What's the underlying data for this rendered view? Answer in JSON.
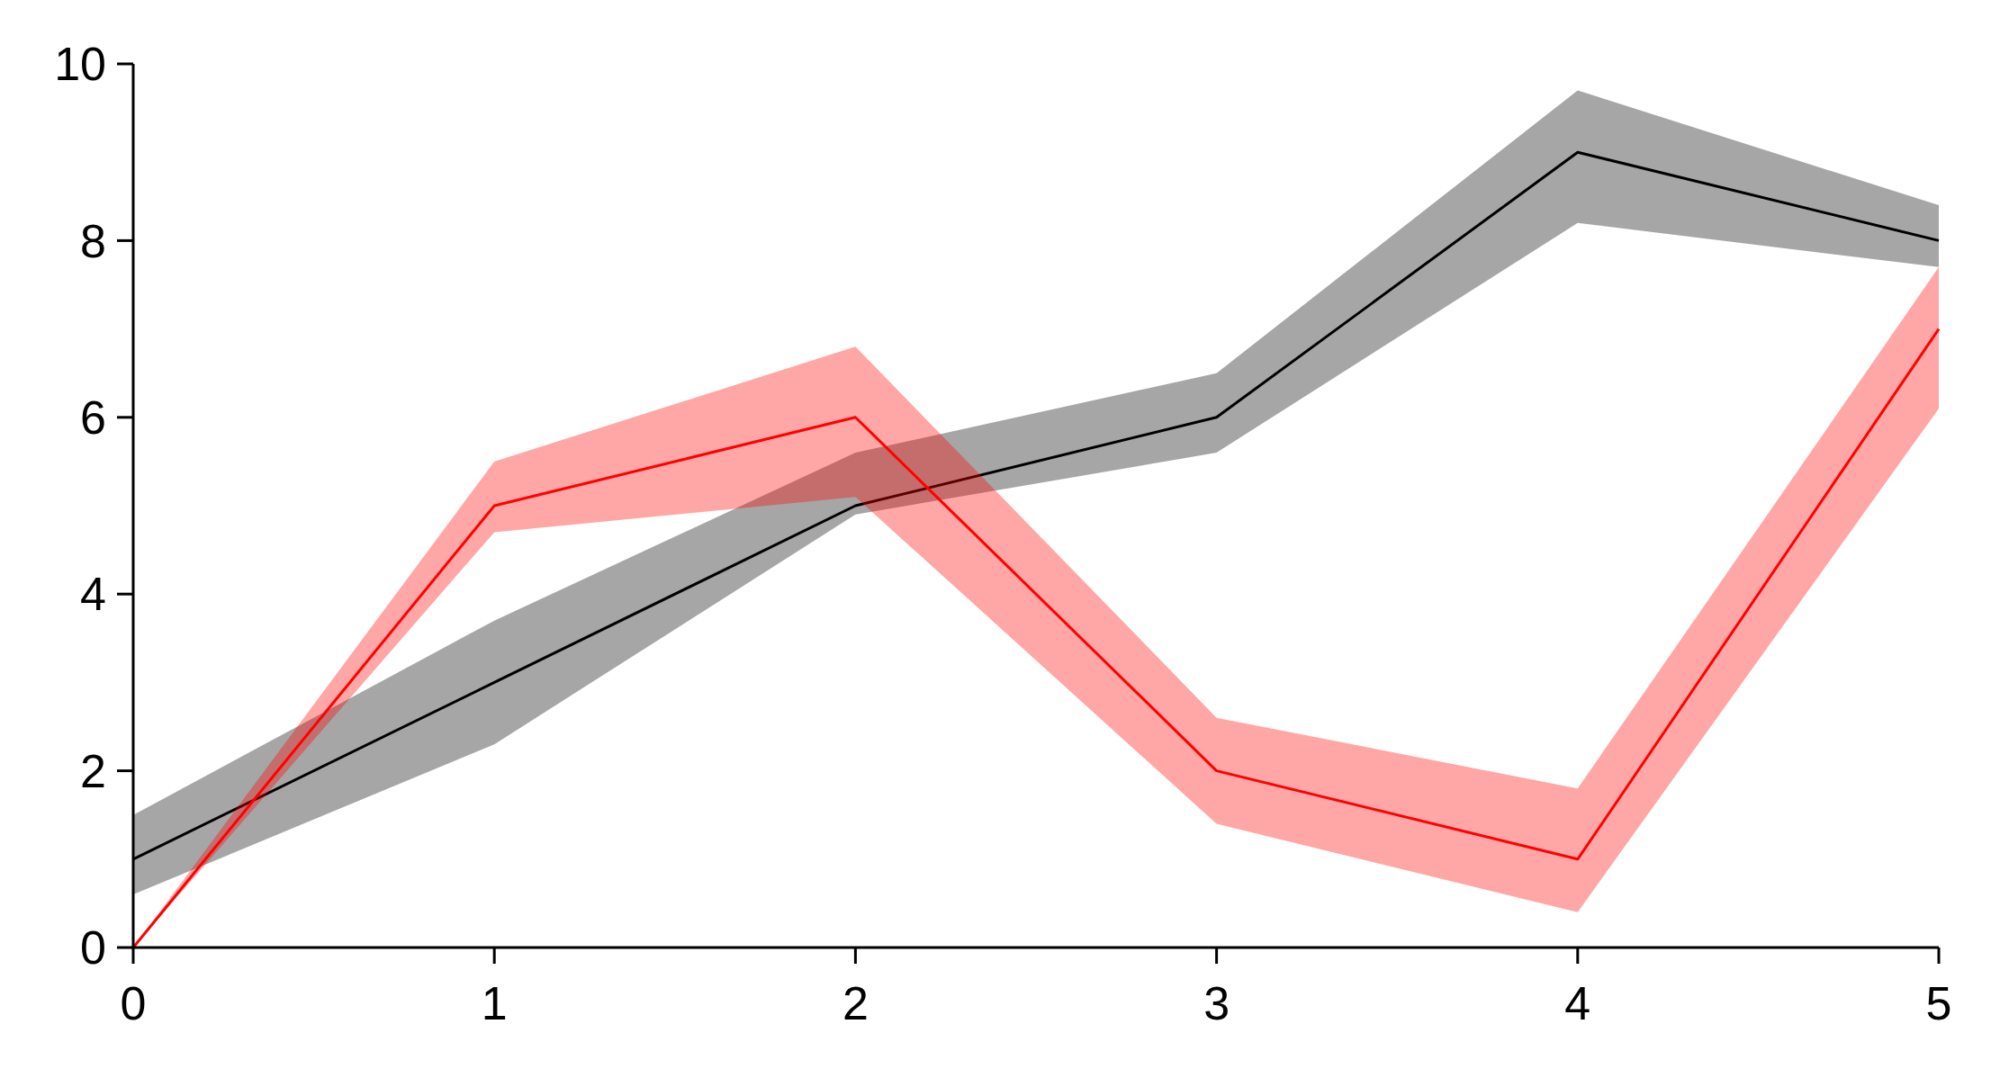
{
  "chart_data": {
    "type": "line",
    "x": [
      0,
      1,
      2,
      3,
      4,
      5
    ],
    "series": [
      {
        "color": "#000000",
        "values": [
          1,
          3,
          5,
          6,
          9,
          8
        ],
        "lower": [
          0.6,
          2.3,
          4.9,
          5.6,
          8.2,
          7.7
        ],
        "upper": [
          1.5,
          3.7,
          5.6,
          6.5,
          9.7,
          8.4
        ]
      },
      {
        "color": "#ff0000",
        "values": [
          0,
          5,
          6,
          2,
          1,
          7
        ],
        "lower": [
          0,
          4.7,
          5.1,
          1.4,
          0.4,
          6.1
        ],
        "upper": [
          0,
          5.5,
          6.8,
          2.6,
          1.8,
          7.7
        ]
      }
    ],
    "xlim": [
      0,
      5
    ],
    "xticks": [
      0,
      1,
      2,
      3,
      4,
      5
    ],
    "ylim": [
      0,
      10
    ],
    "yticks": [
      0,
      2,
      4,
      6,
      8,
      10
    ],
    "grid": false,
    "marker": "none",
    "line_style": "solid"
  }
}
